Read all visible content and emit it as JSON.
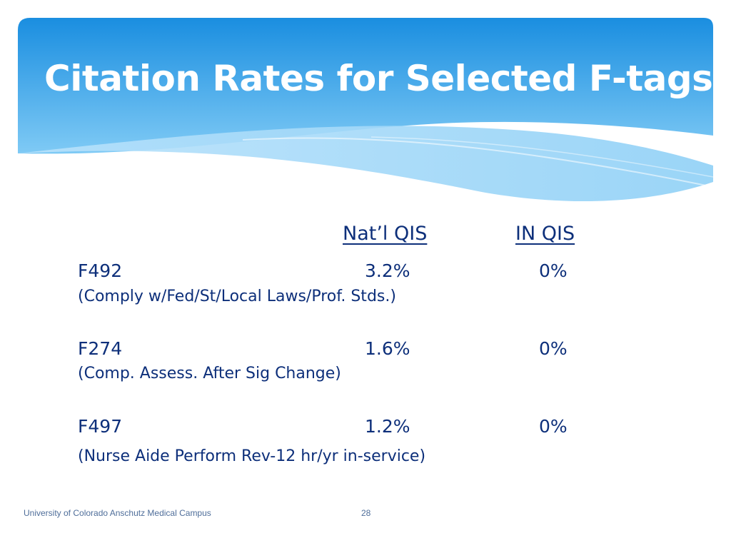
{
  "slide": {
    "title": "Citation Rates for Selected F-tags",
    "colors": {
      "banner_top": "#1a8ee0",
      "banner_bottom": "#7fcaf5",
      "title_text": "#ffffff",
      "body_text": "#0d2f7a",
      "footer_text": "#4f6e9a"
    }
  },
  "table": {
    "headers": {
      "natl": "Nat’l QIS",
      "in": "IN QIS"
    },
    "rows": [
      {
        "tag": "F492",
        "natl": "3.2%",
        "in": "0%",
        "description": "(Comply w/Fed/St/Local Laws/Prof. Stds.)"
      },
      {
        "tag": "F274",
        "natl": "1.6%",
        "in": "0%",
        "description": "(Comp. Assess. After Sig Change)"
      },
      {
        "tag": "F497",
        "natl": "1.2%",
        "in": "0%",
        "description": "(Nurse Aide Perform Rev-12 hr/yr  in-service)"
      }
    ]
  },
  "footer": {
    "organization": "University of Colorado Anschutz Medical Campus",
    "page_number": "28"
  }
}
